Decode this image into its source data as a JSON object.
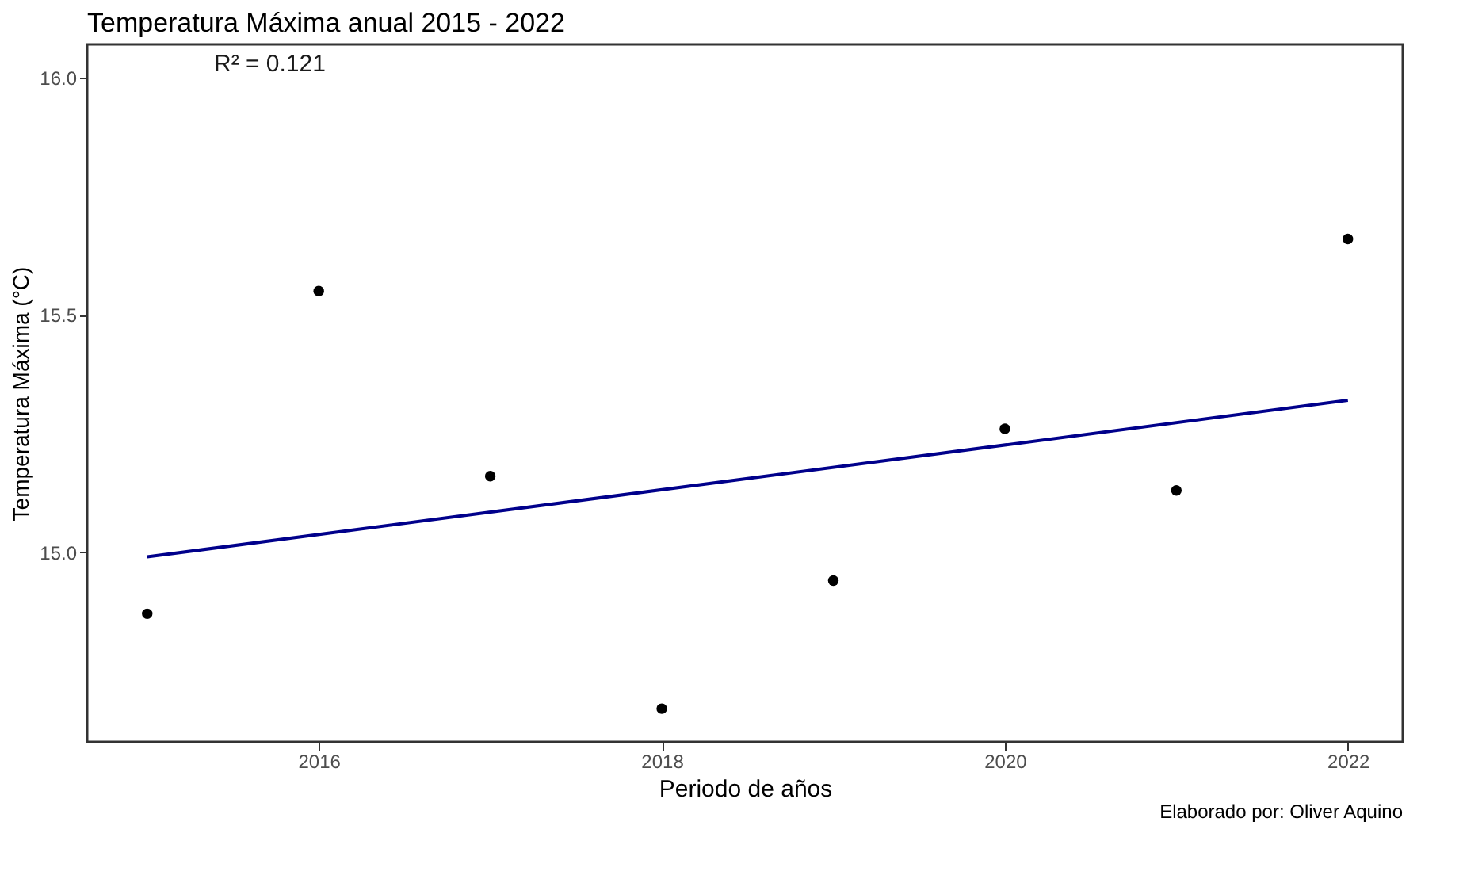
{
  "chart_data": {
    "type": "scatter",
    "title": "Temperatura Máxima anual 2015 - 2022",
    "xlabel": "Periodo de años",
    "ylabel": "Temperatura Máxima (°C)",
    "annotations": [
      "R² = 0.121",
      "Elaborado por: Oliver Aquino"
    ],
    "series": [
      {
        "color": "#000000",
        "marker": "circle",
        "x": [
          2015,
          2016,
          2017,
          2018,
          2019,
          2020,
          2021,
          2022
        ],
        "values": [
          14.87,
          15.55,
          15.16,
          14.67,
          14.94,
          15.26,
          15.13,
          15.66
        ]
      },
      {
        "type": "line",
        "color": "#00008b",
        "x": [
          2015,
          2022
        ],
        "values": [
          14.99,
          15.32
        ]
      }
    ],
    "xlim": [
      2014.65,
      2022.32
    ],
    "ylim": [
      14.6,
      16.07
    ],
    "xticks": [
      2016,
      2018,
      2020,
      2022
    ],
    "yticks": [
      {
        "value": 15,
        "label": "15.0"
      },
      15.5,
      {
        "value": 16,
        "label": "16.0"
      }
    ],
    "grid": false,
    "line_style": "solid"
  }
}
